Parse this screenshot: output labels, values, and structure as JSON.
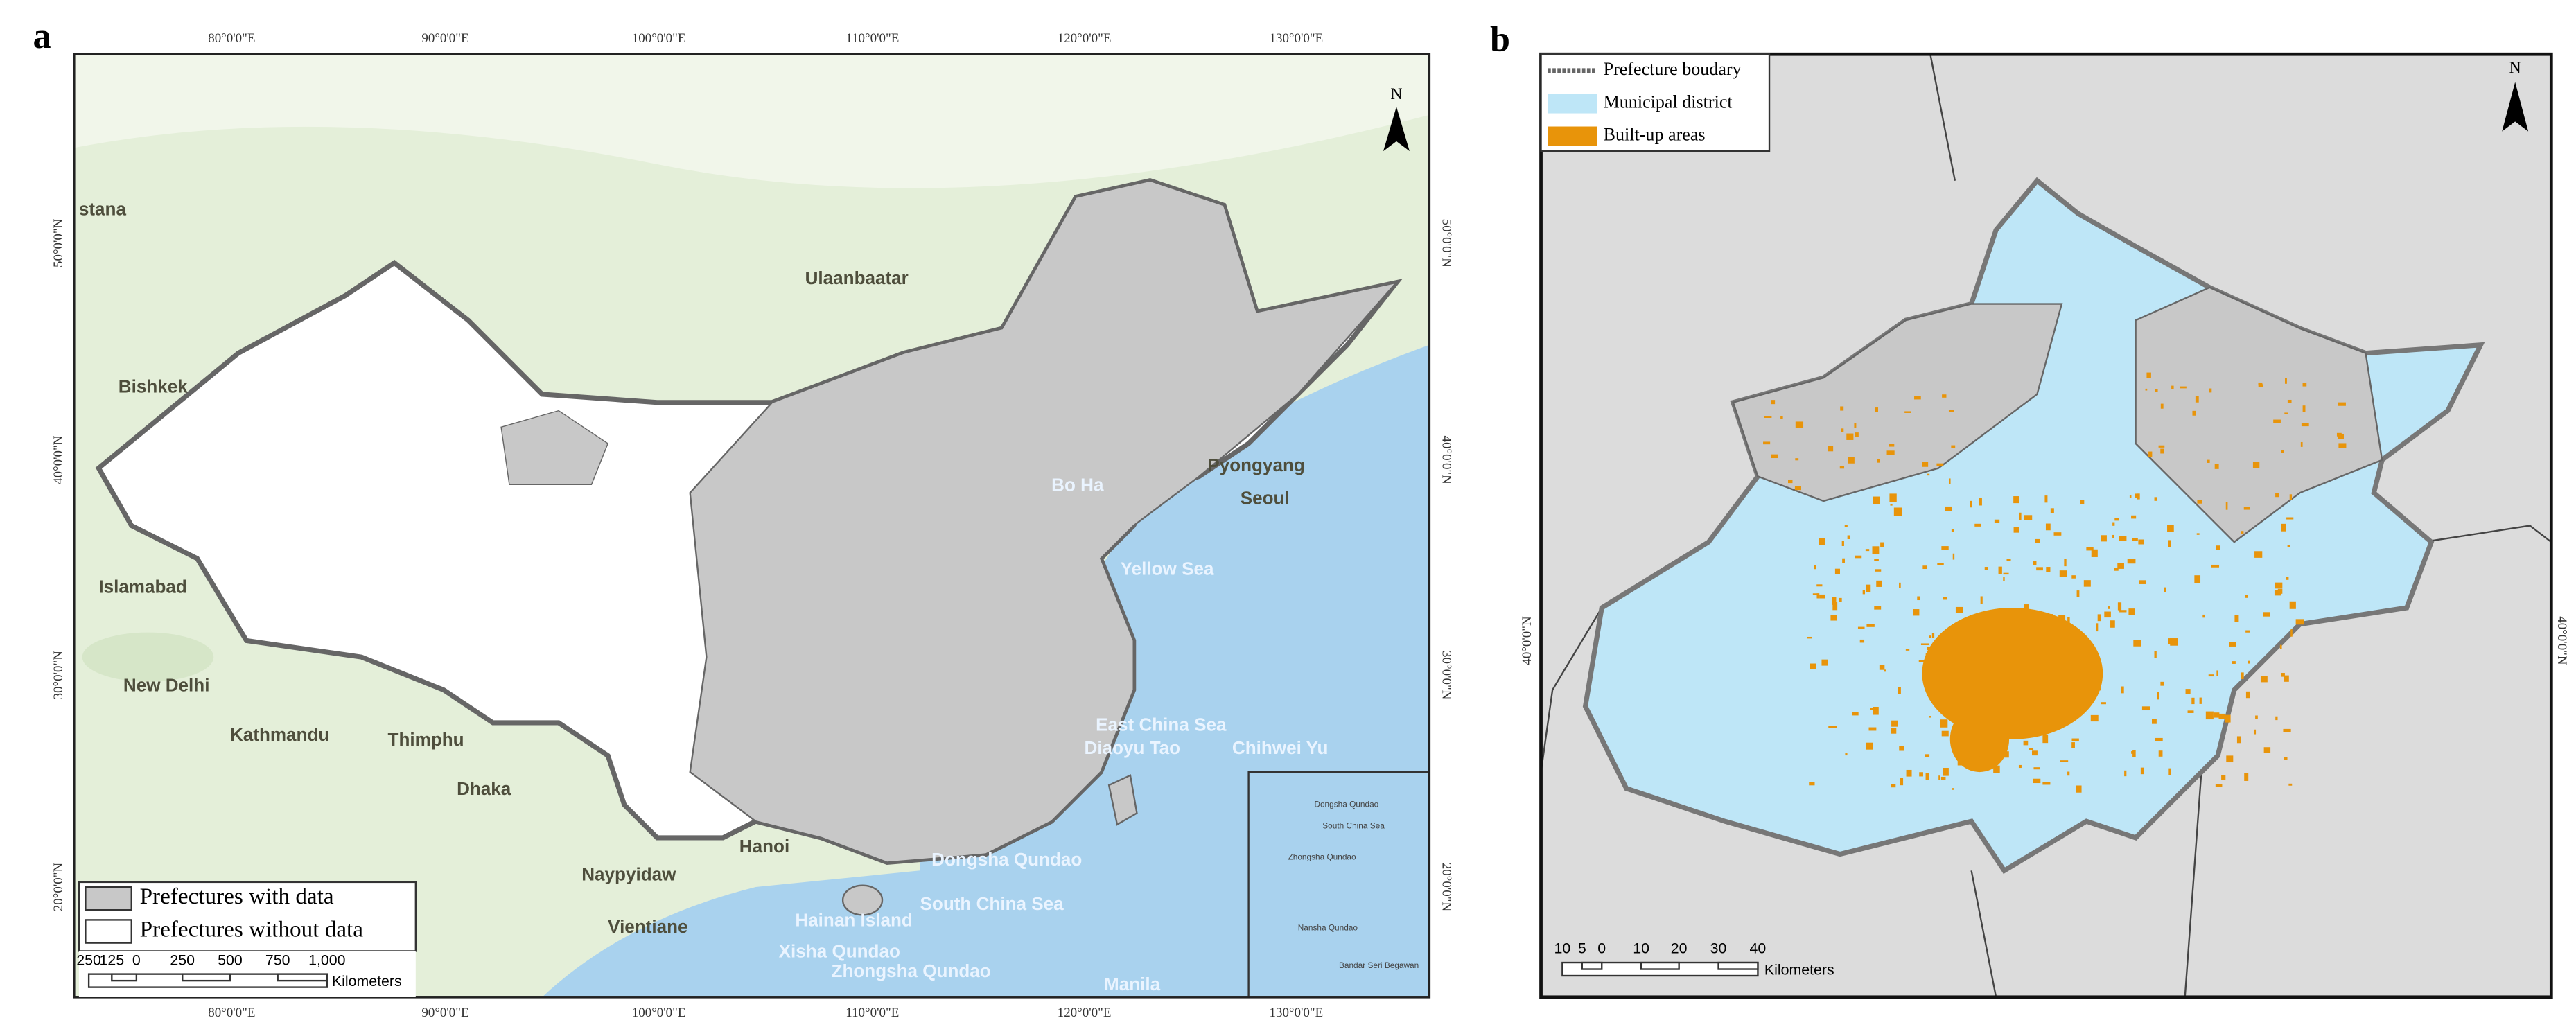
{
  "panel_a": {
    "label": "a",
    "lon_ticks": [
      "80°0'0\"E",
      "90°0'0\"E",
      "100°0'0\"E",
      "110°0'0\"E",
      "120°0'0\"E",
      "130°0'0\"E"
    ],
    "lat_ticks": [
      "50°0'0\"N",
      "40°0'0\"N",
      "30°0'0\"N",
      "20°0'0\"N"
    ],
    "north": "N",
    "places": [
      "stana",
      "Ulaanbaatar",
      "Bishkek",
      "Pyongyang",
      "Seoul",
      "Bo Ha",
      "Islamabad",
      "Yellow Sea",
      "New Delhi",
      "Kathmandu",
      "Thimphu",
      "East China Sea",
      "Diaoyu Tao",
      "Chihwei Yu",
      "Dhaka",
      "Naypyidaw",
      "Hanoi",
      "Dongsha Qundao",
      "South China Sea",
      "Hainan Island",
      "Vientiane",
      "Xisha Qundao",
      "Zhongsha Qundao",
      "Manila"
    ],
    "inset_places": [
      "Dongsha Qundao",
      "South China Sea",
      "Zhongsha Qundao",
      "Nansha Qundao",
      "Bandar Seri Begawan"
    ],
    "legend": [
      "Prefectures with data",
      "Prefectures without data"
    ],
    "scale_labels": [
      "250",
      "125",
      "0",
      "250",
      "500",
      "750",
      "1,000"
    ],
    "scale_unit": "Kilometers"
  },
  "panel_b": {
    "label": "b",
    "lat_ticks": [
      "40°0'0\"N"
    ],
    "north": "N",
    "legend": [
      "Prefecture boudary",
      "Municipal district",
      "Built-up areas"
    ],
    "scale_labels": [
      "10",
      "5",
      "0",
      "10",
      "20",
      "30",
      "40"
    ],
    "scale_unit": "Kilometers"
  }
}
